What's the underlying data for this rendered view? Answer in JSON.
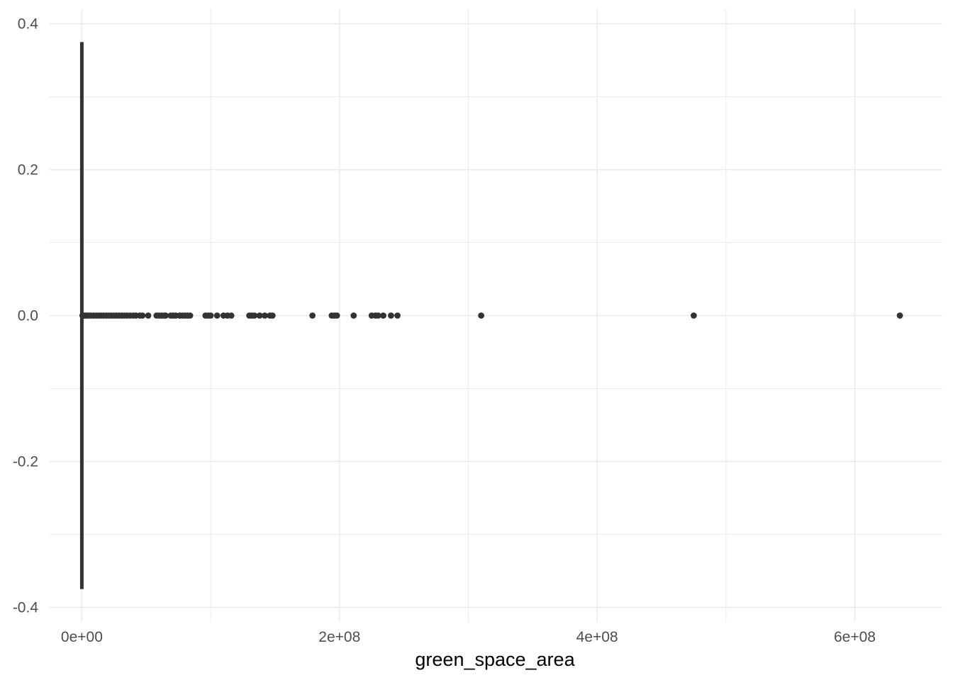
{
  "chart_data": {
    "type": "boxplot",
    "xlabel": "green_space_area",
    "ylabel": "",
    "title": "",
    "xlim": [
      -25000000,
      668000000
    ],
    "ylim": [
      -0.4,
      0.4
    ],
    "x_ticks": [
      {
        "value": 0,
        "label": "0e+00"
      },
      {
        "value": 200000000,
        "label": "2e+08"
      },
      {
        "value": 400000000,
        "label": "4e+08"
      },
      {
        "value": 600000000,
        "label": "6e+08"
      }
    ],
    "y_ticks": [
      {
        "value": 0.4,
        "label": "0.4"
      },
      {
        "value": 0.2,
        "label": "0.2"
      },
      {
        "value": 0.0,
        "label": "0.0"
      },
      {
        "value": -0.2,
        "label": "-0.2"
      },
      {
        "value": -0.4,
        "label": "-0.4"
      }
    ],
    "grid": true,
    "box": {
      "min": 0,
      "q1": 0,
      "median": 0,
      "q3": 0,
      "box_half_height": 0.375
    },
    "outliers_x": [
      500000,
      1500000,
      2500000,
      3500000,
      5000000,
      7000000,
      9000000,
      11000000,
      13000000,
      15000000,
      17000000,
      19000000,
      21000000,
      23000000,
      25000000,
      27000000,
      29000000,
      31000000,
      33000000,
      35000000,
      37500000,
      40000000,
      42000000,
      45000000,
      47000000,
      51500000,
      58000000,
      60000000,
      62000000,
      64000000,
      65000000,
      69000000,
      71000000,
      73000000,
      76000000,
      78000000,
      80000000,
      82000000,
      84000000,
      96000000,
      98000000,
      100000000,
      105000000,
      110000000,
      113000000,
      116000000,
      130000000,
      132000000,
      134000000,
      138000000,
      142000000,
      146000000,
      148000000,
      179000000,
      194000000,
      196000000,
      198000000,
      211000000,
      225000000,
      228000000,
      230000000,
      234000000,
      240000000,
      245000000,
      310000000,
      475000000,
      635000000
    ],
    "color": "#333333",
    "grid_color": "#ebebeb"
  }
}
